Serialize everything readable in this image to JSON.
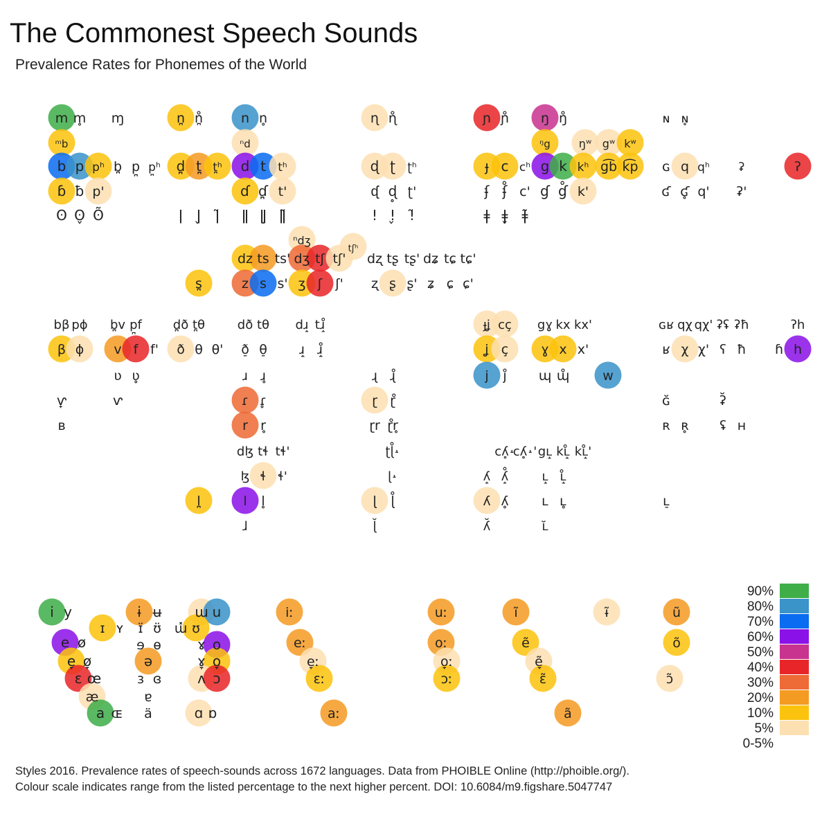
{
  "title": "The Commonest Speech Sounds",
  "subtitle": "Prevalence Rates for Phonemes of the World",
  "caption": {
    "line1": "Styles 2016. Prevalence rates of speech-sounds across 1672 languages. Data from PHOIBLE Online (http://phoible.org/).",
    "line2": "Colour scale indicates range from the listed percentage to the next higher percent. DOI: 10.6084/m9.figshare.5047747"
  },
  "colors": {
    "90%": "#3fae49",
    "80%": "#3a93c9",
    "70%": "#0a6cf0",
    "60%": "#8a12e8",
    "50%": "#c8338f",
    "40%": "#e8262a",
    "30%": "#ee6a36",
    "20%": "#f49b23",
    "10%": "#fbc30d",
    "5%": "#fde0b1",
    "0-5%": "#ffffff"
  },
  "chart_data": {
    "type": "table",
    "title": "The Commonest Speech Sounds",
    "subtitle": "Prevalence Rates for Phonemes of the World",
    "legend": {
      "position": "bottom-right",
      "bins": [
        "90%",
        "80%",
        "70%",
        "60%",
        "50%",
        "40%",
        "30%",
        "20%",
        "10%",
        "5%",
        "0-5%"
      ]
    },
    "phonemes": [
      {
        "s": "m",
        "bin": "90%"
      },
      {
        "s": "m̥",
        "bin": "0-5%"
      },
      {
        "s": "ɱ",
        "bin": "0-5%"
      },
      {
        "s": "n̪",
        "bin": "10%"
      },
      {
        "s": "n̪̊",
        "bin": "0-5%"
      },
      {
        "s": "n",
        "bin": "80%"
      },
      {
        "s": "n̥",
        "bin": "0-5%"
      },
      {
        "s": "ɳ",
        "bin": "5%"
      },
      {
        "s": "ɳ̊",
        "bin": "0-5%"
      },
      {
        "s": "ɲ",
        "bin": "40%"
      },
      {
        "s": "ɲ̊",
        "bin": "0-5%"
      },
      {
        "s": "ŋ",
        "bin": "50%"
      },
      {
        "s": "ŋ̊",
        "bin": "0-5%"
      },
      {
        "s": "ɴ",
        "bin": "0-5%"
      },
      {
        "s": "ɴ̥",
        "bin": "0-5%"
      },
      {
        "s": "ᵐb",
        "bin": "10%"
      },
      {
        "s": "ⁿd",
        "bin": "5%"
      },
      {
        "s": "ᵑg",
        "bin": "10%"
      },
      {
        "s": "ŋʷ",
        "bin": "5%"
      },
      {
        "s": "gʷ",
        "bin": "5%"
      },
      {
        "s": "kʷ",
        "bin": "10%"
      },
      {
        "s": "b",
        "bin": "70%"
      },
      {
        "s": "p",
        "bin": "80%"
      },
      {
        "s": "pʰ",
        "bin": "10%"
      },
      {
        "s": "b̪",
        "bin": "0-5%"
      },
      {
        "s": "p̪",
        "bin": "0-5%"
      },
      {
        "s": "p̪ʰ",
        "bin": "0-5%"
      },
      {
        "s": "d̪",
        "bin": "10%"
      },
      {
        "s": "t̪",
        "bin": "20%"
      },
      {
        "s": "t̪ʰ",
        "bin": "10%"
      },
      {
        "s": "d",
        "bin": "60%"
      },
      {
        "s": "t",
        "bin": "70%"
      },
      {
        "s": "tʰ",
        "bin": "5%"
      },
      {
        "s": "ɖ",
        "bin": "5%"
      },
      {
        "s": "ʈ",
        "bin": "5%"
      },
      {
        "s": "ʈʰ",
        "bin": "0-5%"
      },
      {
        "s": "ɟ",
        "bin": "10%"
      },
      {
        "s": "c",
        "bin": "10%"
      },
      {
        "s": "cʰ",
        "bin": "0-5%"
      },
      {
        "s": "g",
        "bin": "60%"
      },
      {
        "s": "k",
        "bin": "90%"
      },
      {
        "s": "kʰ",
        "bin": "10%"
      },
      {
        "s": "g͡b",
        "bin": "10%"
      },
      {
        "s": "k͡p",
        "bin": "10%"
      },
      {
        "s": "ɢ",
        "bin": "0-5%"
      },
      {
        "s": "q",
        "bin": "5%"
      },
      {
        "s": "qʰ",
        "bin": "0-5%"
      },
      {
        "s": "ʡ",
        "bin": "0-5%"
      },
      {
        "s": "ʔ",
        "bin": "40%"
      },
      {
        "s": "ɓ",
        "bin": "10%"
      },
      {
        "s": "ƀ",
        "bin": "0-5%"
      },
      {
        "s": "p'",
        "bin": "5%"
      },
      {
        "s": "ɗ",
        "bin": "10%"
      },
      {
        "s": "ɗ̪",
        "bin": "0-5%"
      },
      {
        "s": "t'",
        "bin": "5%"
      },
      {
        "s": "ᶑ",
        "bin": "0-5%"
      },
      {
        "s": "ɖ̥",
        "bin": "0-5%"
      },
      {
        "s": "ʈ'",
        "bin": "0-5%"
      },
      {
        "s": "ʄ",
        "bin": "0-5%"
      },
      {
        "s": "ʄ̊",
        "bin": "0-5%"
      },
      {
        "s": "c'",
        "bin": "0-5%"
      },
      {
        "s": "ɠ",
        "bin": "0-5%"
      },
      {
        "s": "ɠ̊",
        "bin": "0-5%"
      },
      {
        "s": "k'",
        "bin": "5%"
      },
      {
        "s": "ʛ",
        "bin": "0-5%"
      },
      {
        "s": "ʛ̥",
        "bin": "0-5%"
      },
      {
        "s": "q'",
        "bin": "0-5%"
      },
      {
        "s": "ʡ'",
        "bin": "0-5%"
      },
      {
        "s": "ʘ",
        "bin": "0-5%"
      },
      {
        "s": "ʘ̬",
        "bin": "0-5%"
      },
      {
        "s": "ʘ̃",
        "bin": "0-5%"
      },
      {
        "s": "ǀ",
        "bin": "0-5%"
      },
      {
        "s": "ǀ̬",
        "bin": "0-5%"
      },
      {
        "s": "ǀ̃",
        "bin": "0-5%"
      },
      {
        "s": "ǁ",
        "bin": "0-5%"
      },
      {
        "s": "ǁ̬",
        "bin": "0-5%"
      },
      {
        "s": "ǁ̃",
        "bin": "0-5%"
      },
      {
        "s": "ǃ",
        "bin": "0-5%"
      },
      {
        "s": "ǃ̬",
        "bin": "0-5%"
      },
      {
        "s": "ǃ̃",
        "bin": "0-5%"
      },
      {
        "s": "ǂ",
        "bin": "0-5%"
      },
      {
        "s": "ǂ̬",
        "bin": "0-5%"
      },
      {
        "s": "ǂ̃",
        "bin": "0-5%"
      },
      {
        "s": "ⁿdʒ",
        "bin": "5%"
      },
      {
        "s": "tʃʰ",
        "bin": "5%"
      },
      {
        "s": "dz",
        "bin": "10%"
      },
      {
        "s": "ts",
        "bin": "20%"
      },
      {
        "s": "ts'",
        "bin": "0-5%"
      },
      {
        "s": "dʒ",
        "bin": "30%"
      },
      {
        "s": "tʃ",
        "bin": "40%"
      },
      {
        "s": "tʃ'",
        "bin": "5%"
      },
      {
        "s": "dʐ",
        "bin": "0-5%"
      },
      {
        "s": "tʂ",
        "bin": "0-5%"
      },
      {
        "s": "tʂ'",
        "bin": "0-5%"
      },
      {
        "s": "dʑ",
        "bin": "0-5%"
      },
      {
        "s": "tɕ",
        "bin": "0-5%"
      },
      {
        "s": "tɕ'",
        "bin": "0-5%"
      },
      {
        "s": "s̪",
        "bin": "10%"
      },
      {
        "s": "z",
        "bin": "30%"
      },
      {
        "s": "s",
        "bin": "70%"
      },
      {
        "s": "s'",
        "bin": "0-5%"
      },
      {
        "s": "ʒ",
        "bin": "10%"
      },
      {
        "s": "ʃ",
        "bin": "40%"
      },
      {
        "s": "ʃ'",
        "bin": "0-5%"
      },
      {
        "s": "ʐ",
        "bin": "0-5%"
      },
      {
        "s": "ʂ",
        "bin": "5%"
      },
      {
        "s": "ʂ'",
        "bin": "0-5%"
      },
      {
        "s": "ʑ",
        "bin": "0-5%"
      },
      {
        "s": "ɕ",
        "bin": "0-5%"
      },
      {
        "s": "ɕ'",
        "bin": "0-5%"
      },
      {
        "s": "bβ",
        "bin": "0-5%"
      },
      {
        "s": "pɸ",
        "bin": "0-5%"
      },
      {
        "s": "b̪v",
        "bin": "0-5%"
      },
      {
        "s": "p̪f",
        "bin": "0-5%"
      },
      {
        "s": "d̪ð",
        "bin": "0-5%"
      },
      {
        "s": "t̪θ",
        "bin": "0-5%"
      },
      {
        "s": "dð",
        "bin": "0-5%"
      },
      {
        "s": "tθ",
        "bin": "0-5%"
      },
      {
        "s": "dɹ̝",
        "bin": "0-5%"
      },
      {
        "s": "tɹ̝̊",
        "bin": "0-5%"
      },
      {
        "s": "ɟʝ",
        "bin": "5%"
      },
      {
        "s": "cç",
        "bin": "5%"
      },
      {
        "s": "gɣ",
        "bin": "0-5%"
      },
      {
        "s": "kx",
        "bin": "0-5%"
      },
      {
        "s": "kx'",
        "bin": "0-5%"
      },
      {
        "s": "ɢʁ",
        "bin": "0-5%"
      },
      {
        "s": "qχ",
        "bin": "0-5%"
      },
      {
        "s": "qχ'",
        "bin": "0-5%"
      },
      {
        "s": "ʡʢ",
        "bin": "0-5%"
      },
      {
        "s": "ʡħ",
        "bin": "0-5%"
      },
      {
        "s": "ʔh",
        "bin": "0-5%"
      },
      {
        "s": "β",
        "bin": "10%"
      },
      {
        "s": "ɸ",
        "bin": "5%"
      },
      {
        "s": "v",
        "bin": "20%"
      },
      {
        "s": "f",
        "bin": "40%"
      },
      {
        "s": "f'",
        "bin": "0-5%"
      },
      {
        "s": "ð",
        "bin": "5%"
      },
      {
        "s": "θ",
        "bin": "0-5%"
      },
      {
        "s": "θ'",
        "bin": "0-5%"
      },
      {
        "s": "ð̠",
        "bin": "0-5%"
      },
      {
        "s": "θ̠",
        "bin": "0-5%"
      },
      {
        "s": "ɹ̝",
        "bin": "0-5%"
      },
      {
        "s": "ɹ̝̊",
        "bin": "0-5%"
      },
      {
        "s": "ʝ",
        "bin": "10%"
      },
      {
        "s": "ç",
        "bin": "5%"
      },
      {
        "s": "ɣ",
        "bin": "10%"
      },
      {
        "s": "x",
        "bin": "10%"
      },
      {
        "s": "x'",
        "bin": "0-5%"
      },
      {
        "s": "ʁ",
        "bin": "0-5%"
      },
      {
        "s": "χ",
        "bin": "5%"
      },
      {
        "s": "χ'",
        "bin": "0-5%"
      },
      {
        "s": "ʕ",
        "bin": "0-5%"
      },
      {
        "s": "ħ",
        "bin": "0-5%"
      },
      {
        "s": "ɦ",
        "bin": "0-5%"
      },
      {
        "s": "h",
        "bin": "60%"
      },
      {
        "s": "ʋ",
        "bin": "0-5%"
      },
      {
        "s": "ʋ̥",
        "bin": "0-5%"
      },
      {
        "s": "ɹ",
        "bin": "0-5%"
      },
      {
        "s": "ɹ̥",
        "bin": "0-5%"
      },
      {
        "s": "ɻ",
        "bin": "0-5%"
      },
      {
        "s": "ɻ̊",
        "bin": "0-5%"
      },
      {
        "s": "j",
        "bin": "80%"
      },
      {
        "s": "j̊",
        "bin": "0-5%"
      },
      {
        "s": "ɰ",
        "bin": "0-5%"
      },
      {
        "s": "ɰ̊",
        "bin": "0-5%"
      },
      {
        "s": "w",
        "bin": "80%"
      },
      {
        "s": "ⱱ̟",
        "bin": "0-5%"
      },
      {
        "s": "ⱱ",
        "bin": "0-5%"
      },
      {
        "s": "ɾ",
        "bin": "30%"
      },
      {
        "s": "ɾ̥",
        "bin": "0-5%"
      },
      {
        "s": "ɽ",
        "bin": "5%"
      },
      {
        "s": "ɽ̊",
        "bin": "0-5%"
      },
      {
        "s": "ɢ̆",
        "bin": "0-5%"
      },
      {
        "s": "ʡ̆",
        "bin": "0-5%"
      },
      {
        "s": "ʙ",
        "bin": "0-5%"
      },
      {
        "s": "r",
        "bin": "30%"
      },
      {
        "s": "r̥",
        "bin": "0-5%"
      },
      {
        "s": "ɽr",
        "bin": "0-5%"
      },
      {
        "s": "ɽ̊r̥",
        "bin": "0-5%"
      },
      {
        "s": "ʀ",
        "bin": "0-5%"
      },
      {
        "s": "ʀ̥",
        "bin": "0-5%"
      },
      {
        "s": "ʢ",
        "bin": "0-5%"
      },
      {
        "s": "ʜ",
        "bin": "0-5%"
      },
      {
        "s": "dɮ",
        "bin": "0-5%"
      },
      {
        "s": "tɬ",
        "bin": "0-5%"
      },
      {
        "s": "tɬ'",
        "bin": "0-5%"
      },
      {
        "s": "ʈɭ̊˔",
        "bin": "0-5%"
      },
      {
        "s": "cʎ̥˔",
        "bin": "0-5%"
      },
      {
        "s": "cʎ̥˔'",
        "bin": "0-5%"
      },
      {
        "s": "gʟ̝",
        "bin": "0-5%"
      },
      {
        "s": "kʟ̝̊",
        "bin": "0-5%"
      },
      {
        "s": "kʟ̝̊'",
        "bin": "0-5%"
      },
      {
        "s": "ɮ",
        "bin": "0-5%"
      },
      {
        "s": "ɬ",
        "bin": "5%"
      },
      {
        "s": "ɬ'",
        "bin": "0-5%"
      },
      {
        "s": "ɭ˔",
        "bin": "0-5%"
      },
      {
        "s": "ʎ̝",
        "bin": "0-5%"
      },
      {
        "s": "ʎ̝̊",
        "bin": "0-5%"
      },
      {
        "s": "ʟ̝",
        "bin": "0-5%"
      },
      {
        "s": "ʟ̝̊",
        "bin": "0-5%"
      },
      {
        "s": "l̪",
        "bin": "10%"
      },
      {
        "s": "l",
        "bin": "60%"
      },
      {
        "s": "l̥",
        "bin": "0-5%"
      },
      {
        "s": "ɭ",
        "bin": "5%"
      },
      {
        "s": "ɭ̊",
        "bin": "0-5%"
      },
      {
        "s": "ʎ",
        "bin": "5%"
      },
      {
        "s": "ʎ̥",
        "bin": "0-5%"
      },
      {
        "s": "ʟ",
        "bin": "0-5%"
      },
      {
        "s": "ʟ̥",
        "bin": "0-5%"
      },
      {
        "s": "ʟ̠",
        "bin": "0-5%"
      },
      {
        "s": "ɺ",
        "bin": "0-5%"
      },
      {
        "s": "ɭ̆",
        "bin": "0-5%"
      },
      {
        "s": "ʎ̆",
        "bin": "0-5%"
      },
      {
        "s": "ʟ̆",
        "bin": "0-5%"
      },
      {
        "s": "i",
        "bin": "90%"
      },
      {
        "s": "y",
        "bin": "0-5%"
      },
      {
        "s": "ɨ",
        "bin": "20%"
      },
      {
        "s": "ʉ",
        "bin": "0-5%"
      },
      {
        "s": "ɯ",
        "bin": "5%"
      },
      {
        "s": "u",
        "bin": "80%"
      },
      {
        "s": "ɪ",
        "bin": "10%"
      },
      {
        "s": "ʏ",
        "bin": "0-5%"
      },
      {
        "s": "ɪ̈",
        "bin": "0-5%"
      },
      {
        "s": "ʊ̈",
        "bin": "0-5%"
      },
      {
        "s": "ɯ̽",
        "bin": "0-5%"
      },
      {
        "s": "ʊ",
        "bin": "10%"
      },
      {
        "s": "e",
        "bin": "60%"
      },
      {
        "s": "ø",
        "bin": "0-5%"
      },
      {
        "s": "ɘ",
        "bin": "0-5%"
      },
      {
        "s": "ɵ",
        "bin": "0-5%"
      },
      {
        "s": "ɤ",
        "bin": "0-5%"
      },
      {
        "s": "o",
        "bin": "60%"
      },
      {
        "s": "e̞",
        "bin": "10%"
      },
      {
        "s": "ø̞",
        "bin": "0-5%"
      },
      {
        "s": "ə",
        "bin": "20%"
      },
      {
        "s": "ɤ̞",
        "bin": "0-5%"
      },
      {
        "s": "o̞",
        "bin": "10%"
      },
      {
        "s": "ɛ",
        "bin": "40%"
      },
      {
        "s": "œ",
        "bin": "0-5%"
      },
      {
        "s": "ɜ",
        "bin": "0-5%"
      },
      {
        "s": "ɞ",
        "bin": "0-5%"
      },
      {
        "s": "ʌ",
        "bin": "5%"
      },
      {
        "s": "ɔ",
        "bin": "40%"
      },
      {
        "s": "æ",
        "bin": "5%"
      },
      {
        "s": "ɐ",
        "bin": "0-5%"
      },
      {
        "s": "a",
        "bin": "90%"
      },
      {
        "s": "ɶ",
        "bin": "0-5%"
      },
      {
        "s": "ä",
        "bin": "0-5%"
      },
      {
        "s": "ɑ",
        "bin": "5%"
      },
      {
        "s": "ɒ",
        "bin": "0-5%"
      },
      {
        "s": "iː",
        "bin": "20%"
      },
      {
        "s": "uː",
        "bin": "20%"
      },
      {
        "s": "eː",
        "bin": "20%"
      },
      {
        "s": "oː",
        "bin": "20%"
      },
      {
        "s": "e̞ː",
        "bin": "5%"
      },
      {
        "s": "o̞ː",
        "bin": "5%"
      },
      {
        "s": "ɛː",
        "bin": "10%"
      },
      {
        "s": "ɔː",
        "bin": "10%"
      },
      {
        "s": "aː",
        "bin": "20%"
      },
      {
        "s": "ĩ",
        "bin": "20%"
      },
      {
        "s": "ũ",
        "bin": "20%"
      },
      {
        "s": "ɨ̃",
        "bin": "5%"
      },
      {
        "s": "ẽ",
        "bin": "10%"
      },
      {
        "s": "õ",
        "bin": "10%"
      },
      {
        "s": "ẽ̞",
        "bin": "5%"
      },
      {
        "s": "ɛ̃",
        "bin": "10%"
      },
      {
        "s": "ɔ̃",
        "bin": "5%"
      },
      {
        "s": "ã",
        "bin": "20%"
      }
    ]
  }
}
